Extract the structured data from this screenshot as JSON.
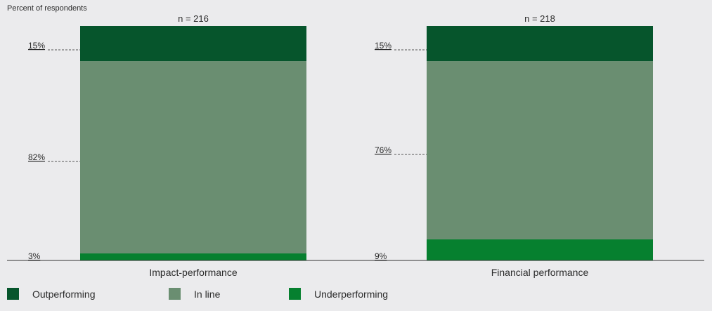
{
  "chart_data": {
    "type": "bar",
    "stacked": true,
    "ylabel": "Percent of respondents",
    "categories": [
      "Impact-performance",
      "Financial performance"
    ],
    "sample_sizes": [
      "n = 216",
      "n = 218"
    ],
    "series": [
      {
        "name": "Underperforming",
        "color": "#06802f",
        "values": [
          3,
          9
        ],
        "labels": [
          "3%",
          "9%"
        ]
      },
      {
        "name": "In line",
        "color": "#6a8e71",
        "values": [
          82,
          76
        ],
        "labels": [
          "82%",
          "76%"
        ]
      },
      {
        "name": "Outperforming",
        "color": "#06552c",
        "values": [
          15,
          15
        ],
        "labels": [
          "15%",
          "15%"
        ]
      }
    ],
    "legend_order": [
      "Outperforming",
      "In line",
      "Underperforming"
    ],
    "legend_position": "bottom-left",
    "grid": false,
    "ylim": [
      0,
      100
    ]
  }
}
